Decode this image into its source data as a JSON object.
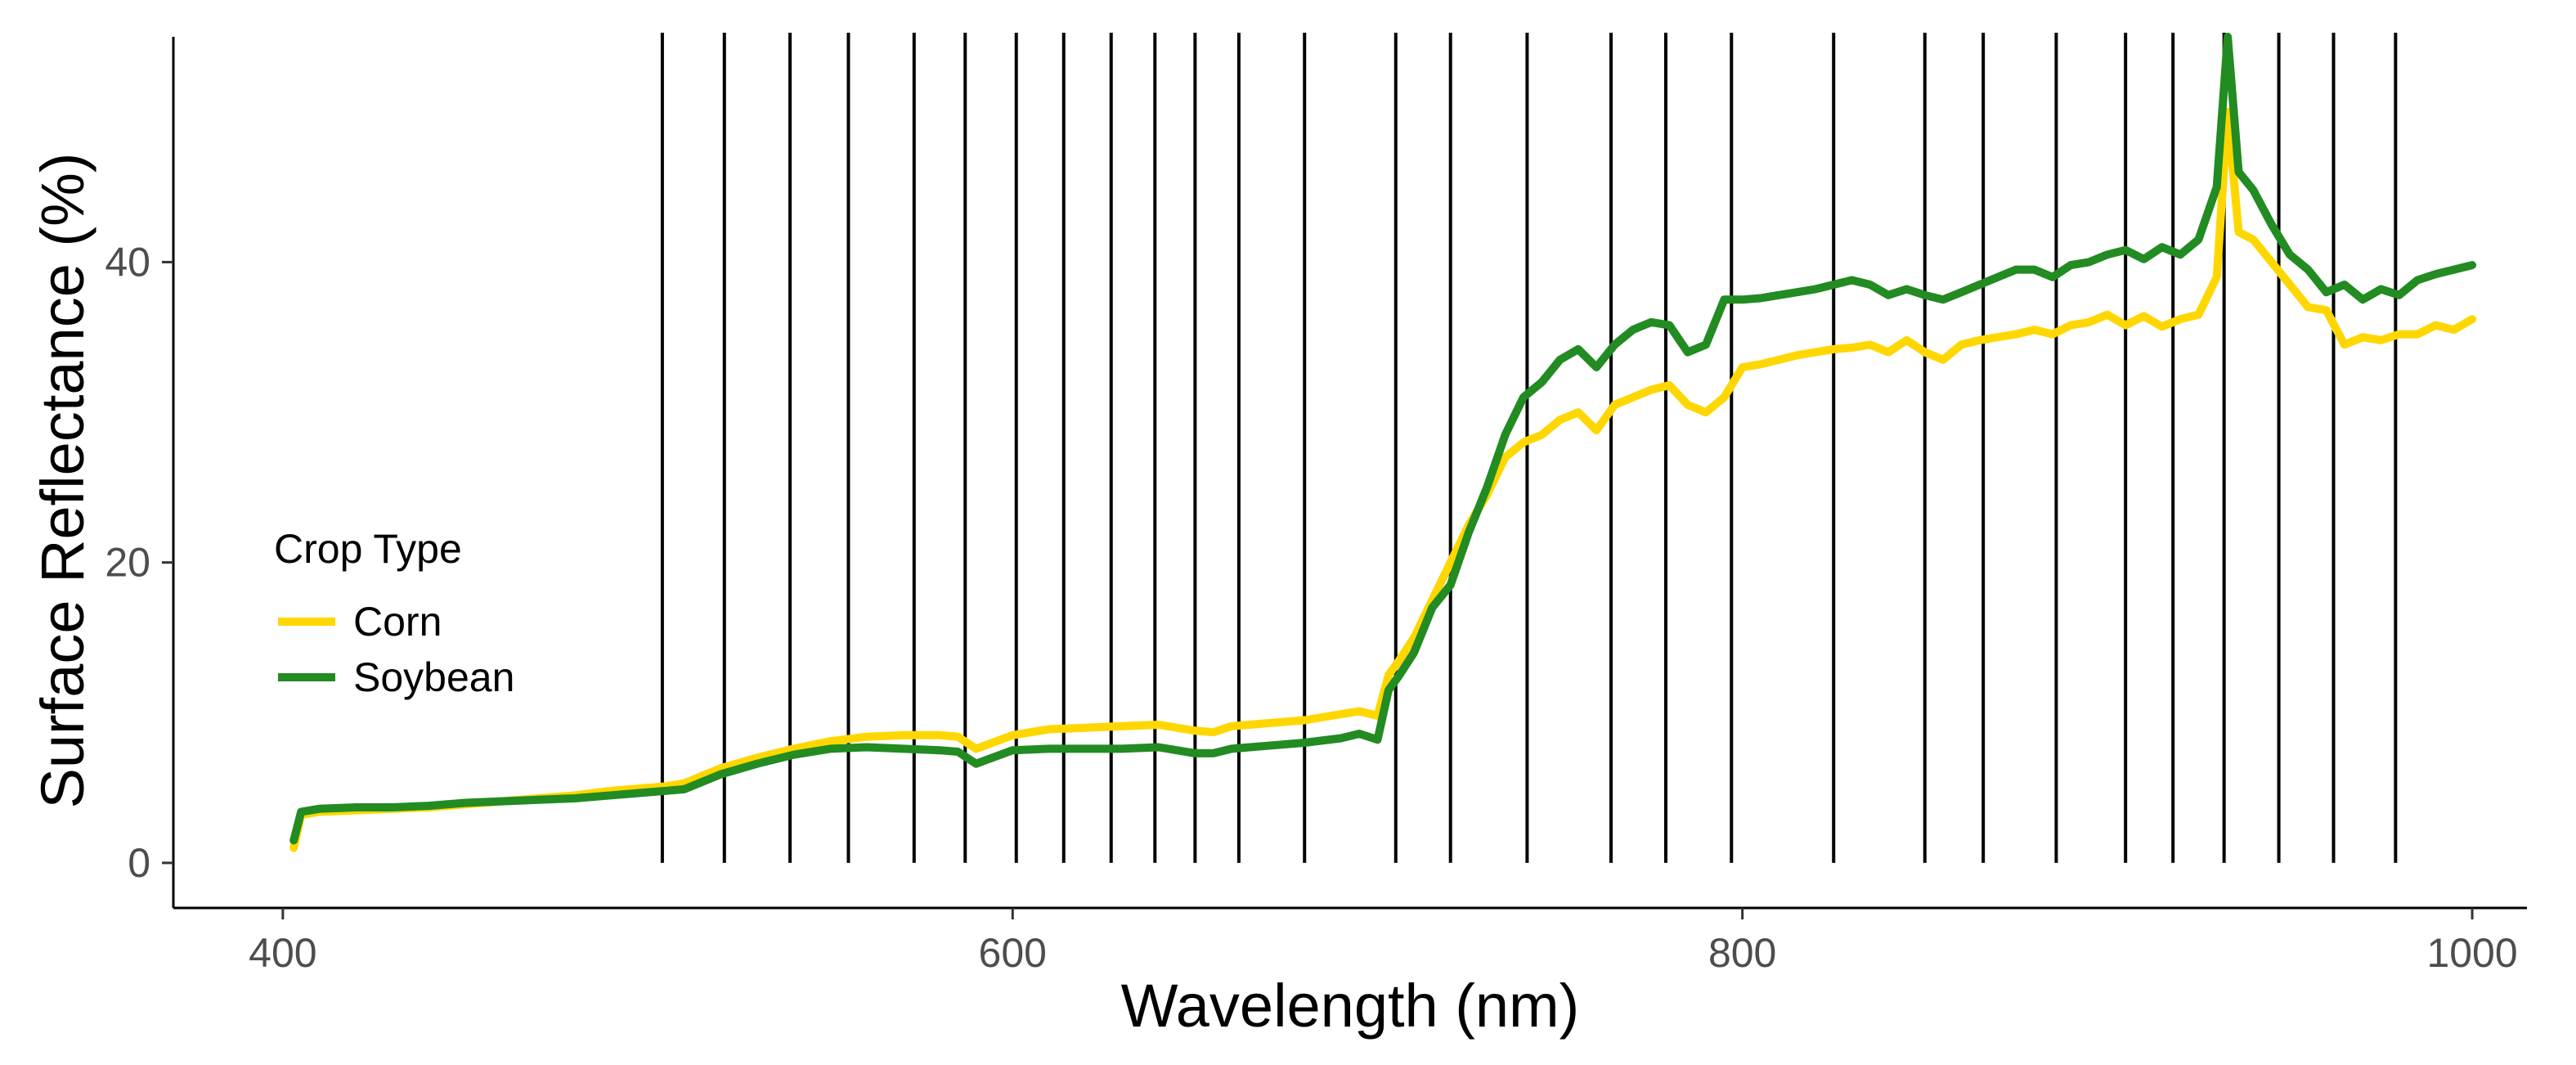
{
  "chart_data": {
    "type": "line",
    "title": "",
    "xlabel": "Wavelength (nm)",
    "ylabel": "Surface Reflectance (%)",
    "xlim": [
      370,
      1015
    ],
    "ylim": [
      -3,
      55
    ],
    "xticks": [
      400,
      600,
      800,
      1000
    ],
    "yticks": [
      0,
      20,
      40
    ],
    "grid": false,
    "legend": {
      "title": "Crop Type",
      "position": "left-middle"
    },
    "vlines": [
      504,
      521,
      539,
      555,
      573,
      587,
      601,
      614,
      627,
      639,
      650,
      662,
      680,
      705,
      720,
      741,
      764,
      779,
      797,
      825,
      850,
      866,
      886,
      905,
      918,
      932,
      947,
      962,
      979
    ],
    "series": [
      {
        "name": "Corn",
        "color": "#FFD700",
        "x": [
          403,
          405,
          410,
          420,
          430,
          440,
          450,
          460,
          470,
          480,
          490,
          500,
          505,
          510,
          515,
          520,
          530,
          540,
          550,
          560,
          570,
          580,
          585,
          590,
          600,
          610,
          620,
          630,
          640,
          650,
          655,
          660,
          670,
          680,
          690,
          695,
          700,
          703,
          706,
          710,
          715,
          720,
          725,
          730,
          735,
          740,
          745,
          750,
          755,
          760,
          765,
          770,
          775,
          780,
          785,
          790,
          795,
          800,
          805,
          810,
          815,
          820,
          825,
          830,
          835,
          840,
          845,
          850,
          855,
          860,
          865,
          870,
          875,
          880,
          885,
          890,
          895,
          900,
          905,
          910,
          915,
          920,
          925,
          930,
          933,
          936,
          940,
          945,
          950,
          955,
          960,
          965,
          970,
          975,
          980,
          985,
          990,
          995,
          1000
        ],
        "values": [
          1,
          3.2,
          3.4,
          3.5,
          3.6,
          3.7,
          3.9,
          4.1,
          4.3,
          4.5,
          4.8,
          5,
          5.1,
          5.3,
          5.8,
          6.3,
          7,
          7.6,
          8.1,
          8.4,
          8.5,
          8.5,
          8.4,
          7.6,
          8.5,
          8.9,
          9,
          9.1,
          9.2,
          8.8,
          8.7,
          9.1,
          9.3,
          9.5,
          9.9,
          10.1,
          9.8,
          12.5,
          13.5,
          15,
          17.5,
          20,
          22.5,
          24.5,
          27,
          28,
          28.5,
          29.5,
          30,
          28.8,
          30.5,
          31,
          31.5,
          31.8,
          30.5,
          30,
          31,
          33,
          33.2,
          33.5,
          33.8,
          34,
          34.2,
          34.3,
          34.5,
          34,
          34.8,
          34,
          33.5,
          34.5,
          34.8,
          35,
          35.2,
          35.5,
          35.2,
          35.8,
          36,
          36.5,
          35.8,
          36.4,
          35.7,
          36.2,
          36.5,
          39,
          50,
          42,
          41.5,
          40,
          38.5,
          37,
          36.8,
          34.5,
          35,
          34.8,
          35.2,
          35.2,
          35.8,
          35.5,
          36.2
        ]
      },
      {
        "name": "Soybean",
        "color": "#228B22",
        "x": [
          403,
          405,
          410,
          420,
          430,
          440,
          450,
          460,
          470,
          480,
          490,
          500,
          505,
          510,
          515,
          520,
          530,
          540,
          550,
          560,
          570,
          580,
          585,
          590,
          600,
          610,
          620,
          630,
          640,
          650,
          655,
          660,
          670,
          680,
          690,
          695,
          700,
          703,
          706,
          710,
          715,
          720,
          725,
          730,
          735,
          740,
          745,
          750,
          755,
          760,
          765,
          770,
          775,
          780,
          785,
          790,
          795,
          800,
          805,
          810,
          815,
          820,
          825,
          830,
          835,
          840,
          845,
          850,
          855,
          860,
          865,
          870,
          875,
          880,
          885,
          890,
          895,
          900,
          905,
          910,
          915,
          920,
          925,
          930,
          933,
          936,
          940,
          945,
          950,
          955,
          960,
          965,
          970,
          975,
          980,
          985,
          990,
          995,
          1000
        ],
        "values": [
          1.5,
          3.4,
          3.6,
          3.7,
          3.7,
          3.8,
          4,
          4.1,
          4.2,
          4.3,
          4.5,
          4.7,
          4.8,
          4.9,
          5.4,
          5.9,
          6.6,
          7.2,
          7.6,
          7.7,
          7.6,
          7.5,
          7.4,
          6.6,
          7.5,
          7.6,
          7.6,
          7.6,
          7.7,
          7.3,
          7.3,
          7.6,
          7.8,
          8,
          8.3,
          8.6,
          8.2,
          11.5,
          12.5,
          14,
          17,
          18.5,
          22,
          25,
          28.5,
          31,
          32,
          33.5,
          34.2,
          33,
          34.5,
          35.5,
          36,
          35.8,
          34,
          34.5,
          37.5,
          37.5,
          37.6,
          37.8,
          38,
          38.2,
          38.5,
          38.8,
          38.5,
          37.8,
          38.2,
          37.8,
          37.5,
          38,
          38.5,
          39,
          39.5,
          39.5,
          39,
          39.8,
          40,
          40.5,
          40.8,
          40.2,
          41,
          40.5,
          41.5,
          45,
          55,
          46,
          44.8,
          42.5,
          40.5,
          39.5,
          38,
          38.5,
          37.5,
          38.2,
          37.8,
          38.8,
          39.2,
          39.5,
          39.8
        ]
      }
    ]
  }
}
